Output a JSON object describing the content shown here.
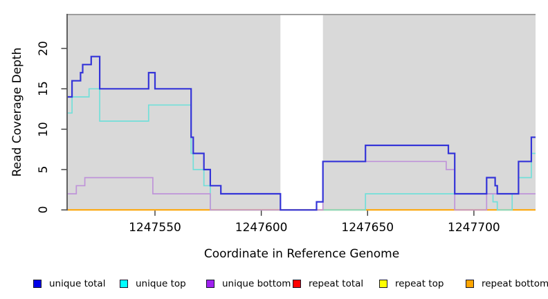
{
  "figure": {
    "xlabel": "Coordinate in Reference Genome",
    "ylabel": "Read Coverage Depth"
  },
  "chart_data": {
    "type": "line",
    "step_style": true,
    "title": "",
    "xlabel": "Coordinate in Reference Genome",
    "ylabel": "Read Coverage Depth",
    "x_range": [
      1247509,
      1247729
    ],
    "y_range": [
      0,
      24.2
    ],
    "x_ticks": [
      1247550,
      1247600,
      1247650,
      1247700
    ],
    "y_ticks": [
      0,
      5,
      10,
      15,
      20
    ],
    "grid": false,
    "legend_position": "bottom",
    "plot_background": "#d9d9d9",
    "gap_region": {
      "from": 1247609,
      "to": 1247629,
      "color": "#ffffff"
    },
    "series": [
      {
        "name": "unique total",
        "color": "#3434d8",
        "legend_color": "#0000e8",
        "line_width": 2.2,
        "steps": [
          [
            1247509,
            14
          ],
          [
            1247511,
            16
          ],
          [
            1247515,
            17
          ],
          [
            1247516,
            18
          ],
          [
            1247520,
            19
          ],
          [
            1247524,
            15
          ],
          [
            1247547,
            17
          ],
          [
            1247550,
            15
          ],
          [
            1247567,
            9
          ],
          [
            1247568,
            7
          ],
          [
            1247573,
            5
          ],
          [
            1247576,
            3
          ],
          [
            1247581,
            2
          ],
          [
            1247609,
            0
          ],
          [
            1247626,
            1
          ],
          [
            1247629,
            6
          ],
          [
            1247649,
            8
          ],
          [
            1247688,
            7
          ],
          [
            1247691,
            2
          ],
          [
            1247706,
            4
          ],
          [
            1247710,
            3
          ],
          [
            1247711,
            2
          ],
          [
            1247721,
            6
          ],
          [
            1247727,
            9
          ]
        ],
        "x_end": 1247729
      },
      {
        "name": "unique top",
        "color": "#72dfd9",
        "legend_color": "#00ffff",
        "line_width": 1.7,
        "steps": [
          [
            1247509,
            12
          ],
          [
            1247511,
            14
          ],
          [
            1247519,
            15
          ],
          [
            1247524,
            11
          ],
          [
            1247547,
            13
          ],
          [
            1247567,
            7
          ],
          [
            1247568,
            5
          ],
          [
            1247573,
            3
          ],
          [
            1247576,
            0
          ],
          [
            1247649,
            2
          ],
          [
            1247709,
            1
          ],
          [
            1247711,
            0
          ],
          [
            1247718,
            2
          ],
          [
            1247721,
            4
          ],
          [
            1247727,
            7
          ]
        ],
        "x_end": 1247729
      },
      {
        "name": "unique bottom",
        "color": "#bf93d9",
        "legend_color": "#a020f0",
        "line_width": 1.7,
        "steps": [
          [
            1247509,
            2
          ],
          [
            1247513,
            3
          ],
          [
            1247517,
            4
          ],
          [
            1247549,
            2
          ],
          [
            1247576,
            0
          ],
          [
            1247629,
            6
          ],
          [
            1247687,
            5
          ],
          [
            1247691,
            0
          ],
          [
            1247706,
            2
          ]
        ],
        "x_end": 1247729
      },
      {
        "name": "repeat total",
        "color": "#dd2828",
        "legend_color": "#ff0000",
        "line_width": 1.5,
        "steps": [
          [
            1247509,
            0
          ]
        ],
        "x_end": 1247729
      },
      {
        "name": "repeat top",
        "color": "#eeee00",
        "legend_color": "#ffff00",
        "line_width": 1.5,
        "steps": [
          [
            1247509,
            0
          ]
        ],
        "x_end": 1247729
      },
      {
        "name": "repeat bottom",
        "color": "#ffa500",
        "legend_color": "#ffa500",
        "line_width": 2,
        "steps": [
          [
            1247509,
            0
          ]
        ],
        "x_end": 1247729
      }
    ],
    "legend": {
      "items": [
        {
          "label": "unique total",
          "color": "#0000e8"
        },
        {
          "label": "unique top",
          "color": "#00ffff"
        },
        {
          "label": "unique bottom",
          "color": "#a020f0"
        },
        {
          "label": "repeat total",
          "color": "#ff0000"
        },
        {
          "label": "repeat top",
          "color": "#ffff00"
        },
        {
          "label": "repeat bottom",
          "color": "#ffa500"
        }
      ]
    }
  }
}
